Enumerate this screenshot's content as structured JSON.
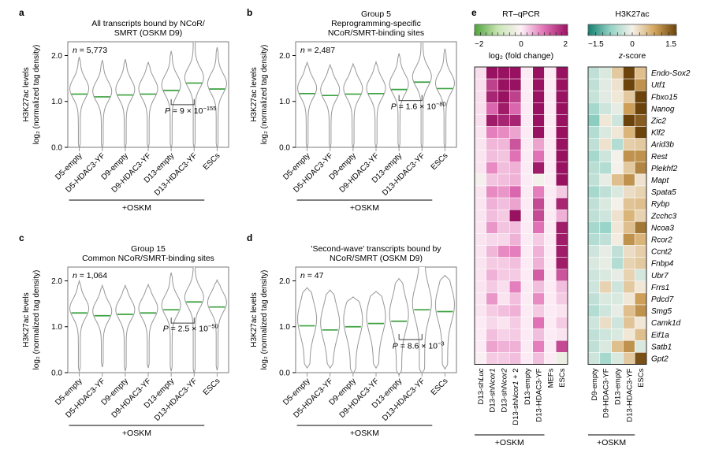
{
  "figure_title": "H3K27ac violin plots and RT-qPCR / H3K27ac heatmaps",
  "colors": {
    "background": "#ffffff",
    "violin_outline": "#979797",
    "median_green": "#3ba13f",
    "box_stroke": "#7a7a7a",
    "bracket": "#3f3f3f",
    "heatmap_border": "#2b2b2b"
  },
  "violin_common": {
    "ylabel_line1": "H3K27ac levels",
    "ylabel_line2": "log₂ (normalized tag density)",
    "yticks": [
      "0.0",
      "1.0",
      "2.0"
    ],
    "ytick_values": [
      0,
      1,
      2
    ],
    "ymax": 2.3,
    "categories": [
      "D5-empty",
      "D5-HDAC3-YF",
      "D9-empty",
      "D9-HDAC3-YF",
      "D13-empty",
      "D13-HDAC3-YF",
      "ESCs"
    ],
    "group_label": "+OSKM",
    "group_span": [
      0,
      5
    ]
  },
  "chart_data": [
    {
      "id": "a",
      "type": "violin",
      "panel_letter": "a",
      "title_lines": [
        "All transcripts bound by NCoR/",
        "SMRT (OSKM D9)"
      ],
      "n_parts": [
        {
          "t": "n",
          "i": true
        },
        {
          "t": " = 5,773"
        }
      ],
      "p_parts": [
        {
          "t": "P",
          "i": true
        },
        {
          "t": " = 9 × 10"
        },
        {
          "t": "−155",
          "sup": true
        }
      ],
      "medians": [
        1.16,
        1.1,
        1.14,
        1.16,
        1.24,
        1.4,
        1.27
      ],
      "tops": [
        1.97,
        1.9,
        1.92,
        1.86,
        2.1,
        2.45,
        2.18
      ],
      "bottoms": [
        -0.02,
        -0.02,
        -0.02,
        -0.02,
        -0.02,
        -0.02,
        -0.02
      ],
      "sigma": 0.3,
      "base": 0.1,
      "bulge_offset": 0.12,
      "bracket": {
        "violins": [
          4,
          5
        ],
        "y": 0.93,
        "text_y": 0.74
      }
    },
    {
      "id": "b",
      "type": "violin",
      "panel_letter": "b",
      "title_lines": [
        "Group 5",
        "Reprogramming-specific",
        "NCoR/SMRT-binding sites"
      ],
      "n_parts": [
        {
          "t": "n",
          "i": true
        },
        {
          "t": " = 2,487"
        }
      ],
      "p_parts": [
        {
          "t": "P",
          "i": true
        },
        {
          "t": " = 1.6 × 10"
        },
        {
          "t": "−80",
          "sup": true
        }
      ],
      "medians": [
        1.17,
        1.13,
        1.16,
        1.17,
        1.26,
        1.42,
        1.28
      ],
      "tops": [
        1.85,
        1.8,
        1.82,
        1.86,
        2.05,
        2.42,
        2.15
      ],
      "bottoms": [
        -0.02,
        -0.02,
        -0.02,
        -0.02,
        -0.02,
        -0.02,
        -0.02
      ],
      "sigma": 0.3,
      "base": 0.1,
      "bulge_offset": 0.12,
      "bracket": {
        "violins": [
          4,
          5
        ],
        "y": 1.02,
        "text_y": 0.83
      }
    },
    {
      "id": "c",
      "type": "violin",
      "panel_letter": "c",
      "title_lines": [
        "Group 15",
        "Common NCoR/SMRT-binding sites"
      ],
      "n_parts": [
        {
          "t": "n",
          "i": true
        },
        {
          "t": " = 1,064"
        }
      ],
      "p_parts": [
        {
          "t": "P",
          "i": true
        },
        {
          "t": " = 2.5 × 10"
        },
        {
          "t": "−50",
          "sup": true
        }
      ],
      "medians": [
        1.3,
        1.24,
        1.27,
        1.3,
        1.37,
        1.54,
        1.43
      ],
      "tops": [
        2.0,
        1.9,
        1.9,
        1.92,
        2.18,
        2.5,
        2.02
      ],
      "bottoms": [
        0.02,
        0.12,
        0.03,
        0.1,
        0.03,
        -0.02,
        0.05
      ],
      "sigma": 0.3,
      "base": 0.1,
      "bulge_offset": 0.1,
      "bracket": {
        "violins": [
          4,
          5
        ],
        "y": 1.08,
        "text_y": 0.9
      }
    },
    {
      "id": "d",
      "type": "violin",
      "panel_letter": "d",
      "title_lines": [
        "'Second-wave' transcripts bound by",
        "NCoR/SMRT (OSKM D9)"
      ],
      "n_parts": [
        {
          "t": "n",
          "i": true
        },
        {
          "t": " = 47"
        }
      ],
      "p_parts": [
        {
          "t": "P",
          "i": true
        },
        {
          "t": " = 8.6 × 10"
        },
        {
          "t": "−3",
          "sup": true
        }
      ],
      "medians": [
        1.02,
        0.93,
        1.0,
        1.07,
        1.12,
        1.37,
        1.33
      ],
      "tops": [
        1.85,
        1.8,
        1.65,
        1.77,
        2.05,
        2.5,
        2.12
      ],
      "bottoms": [
        0.1,
        0.1,
        -0.02,
        0.1,
        -0.05,
        -0.02,
        0.08
      ],
      "sigma": 0.5,
      "base": 0.28,
      "bulge_offset": 0.15,
      "bracket": {
        "violins": [
          4,
          5
        ],
        "y": 0.72,
        "text_y": 0.52
      }
    },
    {
      "id": "e_rtqpcr",
      "type": "heatmap",
      "panel_letter": "e",
      "legend": {
        "title": "RT–qPCR",
        "label_parts": [
          {
            "t": "log₂ (fold change)"
          }
        ],
        "ticks": [
          "−2",
          "0",
          "2"
        ],
        "tick_values": [
          -2,
          0,
          2
        ],
        "domain": [
          -2,
          2
        ],
        "minor_tick_step": 0.25,
        "color_stops": [
          [
            -2,
            "#4fa33b"
          ],
          [
            -1,
            "#c9e6b4"
          ],
          [
            0,
            "#fdf1f7"
          ],
          [
            1,
            "#e171b5"
          ],
          [
            2,
            "#991261"
          ]
        ]
      },
      "columns": [
        {
          "parts": [
            {
              "t": "D13-sh"
            },
            {
              "t": "Luc",
              "i": true
            }
          ]
        },
        {
          "parts": [
            {
              "t": "D13-sh"
            },
            {
              "t": "Ncor1",
              "i": true
            }
          ]
        },
        {
          "parts": [
            {
              "t": "D13-sh"
            },
            {
              "t": "Ncor2",
              "i": true
            }
          ]
        },
        {
          "parts": [
            {
              "t": "D13-sh"
            },
            {
              "t": "Ncor1",
              "i": true
            },
            {
              "t": " + 2"
            }
          ]
        },
        {
          "parts": [
            {
              "t": "D13-empty"
            }
          ]
        },
        {
          "parts": [
            {
              "t": "D13-HDAC3-YF"
            }
          ]
        },
        {
          "parts": [
            {
              "t": "MEFs"
            }
          ]
        },
        {
          "parts": [
            {
              "t": "ESCs"
            }
          ]
        }
      ],
      "group_label": "+OSKM",
      "group_span": [
        0,
        5
      ],
      "rows": [
        "Endo-Sox2",
        "Utf1",
        "Fbxo15",
        "Nanog",
        "Zic2",
        "Klf2",
        "Arid3b",
        "Rest",
        "Plekhf2",
        "Mapt",
        "Spata5",
        "Rybp",
        "Zcchc3",
        "Ncoa3",
        "Rcor2",
        "Ccnt2",
        "Fnbp4",
        "Ubr7",
        "Frrs1",
        "Pdcd7",
        "Smg5",
        "Camk1d",
        "Eif1a",
        "Satb1",
        "Gpt2"
      ],
      "show_row_labels": false,
      "values": [
        [
          0.15,
          2.0,
          2.0,
          2.0,
          0.05,
          2.0,
          0.05,
          2.0
        ],
        [
          0.15,
          1.5,
          2.0,
          2.0,
          0.05,
          2.0,
          0.05,
          2.0
        ],
        [
          0.15,
          1.8,
          2.0,
          1.5,
          0.05,
          2.0,
          0.05,
          2.0
        ],
        [
          0.15,
          1.1,
          1.9,
          1.1,
          0.05,
          2.0,
          0.05,
          2.0
        ],
        [
          0.15,
          1.9,
          1.8,
          1.8,
          0.05,
          2.0,
          0.05,
          2.0
        ],
        [
          0.1,
          0.9,
          0.8,
          0.6,
          0.05,
          2.0,
          0.05,
          2.0
        ],
        [
          0.1,
          0.45,
          0.45,
          1.3,
          0.05,
          0.6,
          0.05,
          2.0
        ],
        [
          0.1,
          0.4,
          0.35,
          1.0,
          0.05,
          1.0,
          0.05,
          2.0
        ],
        [
          0.1,
          0.8,
          0.4,
          0.5,
          0.05,
          1.9,
          0.05,
          2.0
        ],
        [
          -0.15,
          0.35,
          0.4,
          0.5,
          0.05,
          -0.2,
          0.05,
          2.0
        ],
        [
          0.1,
          0.8,
          0.7,
          1.1,
          0.05,
          0.9,
          0.05,
          0.3
        ],
        [
          0.1,
          0.5,
          0.4,
          0.6,
          0.05,
          1.4,
          0.05,
          1.8
        ],
        [
          0.1,
          0.4,
          0.3,
          2.0,
          0.05,
          1.4,
          0.05,
          0.5
        ],
        [
          0.1,
          0.7,
          0.35,
          0.4,
          0.05,
          1.0,
          0.05,
          1.9
        ],
        [
          0.1,
          0.2,
          0.2,
          0.5,
          0.05,
          0.3,
          0.05,
          1.9
        ],
        [
          0.1,
          0.45,
          0.8,
          0.9,
          0.05,
          0.5,
          0.05,
          1.9
        ],
        [
          0.1,
          0.3,
          0.3,
          0.4,
          0.05,
          0.5,
          0.05,
          1.9
        ],
        [
          0.1,
          0.5,
          0.3,
          0.3,
          0.05,
          1.2,
          0.05,
          1.3
        ],
        [
          0.1,
          0.3,
          0.15,
          0.9,
          0.05,
          0.4,
          0.05,
          0.4
        ],
        [
          0.1,
          0.7,
          0.1,
          0.4,
          0.05,
          0.8,
          0.05,
          0.3
        ],
        [
          0.1,
          0.3,
          0.4,
          0.5,
          0.05,
          0.3,
          0.05,
          0.1
        ],
        [
          0.05,
          0.2,
          0.1,
          0.3,
          0.05,
          1.0,
          0.05,
          0.3
        ],
        [
          0.05,
          0.4,
          0.25,
          0.3,
          0.05,
          0.4,
          0.05,
          0.1
        ],
        [
          0.05,
          0.6,
          0.5,
          0.5,
          0.05,
          0.9,
          0.05,
          1.4
        ],
        [
          -0.05,
          0.3,
          0.3,
          0.4,
          0.05,
          0.4,
          0.05,
          -0.3
        ]
      ]
    },
    {
      "id": "e_h3k27ac",
      "type": "heatmap",
      "panel_letter": "",
      "legend": {
        "title": "H3K27ac",
        "label_parts": [
          {
            "t": "z",
            "i": true
          },
          {
            "t": "-score"
          }
        ],
        "ticks": [
          "−1.5",
          "0",
          "1.5"
        ],
        "tick_values": [
          -1.5,
          0,
          1.5
        ],
        "domain": [
          -1.5,
          1.5
        ],
        "minor_tick_step": 0.25,
        "color_stops": [
          [
            -1.5,
            "#15806e"
          ],
          [
            -0.75,
            "#93d2c6"
          ],
          [
            0,
            "#f4f1ea"
          ],
          [
            0.75,
            "#d4a65e"
          ],
          [
            1.5,
            "#6b430b"
          ]
        ]
      },
      "columns": [
        {
          "parts": [
            {
              "t": "D9-empty"
            }
          ]
        },
        {
          "parts": [
            {
              "t": "D9-HDAC3-YF"
            }
          ]
        },
        {
          "parts": [
            {
              "t": "D13-empty"
            }
          ]
        },
        {
          "parts": [
            {
              "t": "D13-HDAC3-YF"
            }
          ]
        },
        {
          "parts": [
            {
              "t": "ESCs"
            }
          ]
        }
      ],
      "group_label": "+OSKM",
      "group_span": [
        0,
        3
      ],
      "rows": [
        "Endo-Sox2",
        "Utf1",
        "Fbxo15",
        "Nanog",
        "Zic2",
        "Klf2",
        "Arid3b",
        "Rest",
        "Plekhf2",
        "Mapt",
        "Spata5",
        "Rybp",
        "Zcchc3",
        "Ncoa3",
        "Rcor2",
        "Ccnt2",
        "Fnbp4",
        "Ubr7",
        "Frrs1",
        "Pdcd7",
        "Smg5",
        "Camk1d",
        "Eif1a",
        "Satb1",
        "Gpt2"
      ],
      "show_row_labels": true,
      "values": [
        [
          -0.4,
          -0.2,
          0.4,
          1.5,
          0.5
        ],
        [
          -0.4,
          -0.15,
          0.15,
          1.5,
          0.9
        ],
        [
          -0.35,
          -0.15,
          0.1,
          0.4,
          1.5
        ],
        [
          -0.6,
          -0.3,
          -0.1,
          0.8,
          1.5
        ],
        [
          -0.8,
          0.1,
          -0.3,
          1.5,
          1.3
        ],
        [
          -0.5,
          -0.2,
          0.1,
          0.6,
          1.5
        ],
        [
          -0.4,
          0.15,
          -0.5,
          0.35,
          0.4
        ],
        [
          -0.6,
          -0.3,
          0.0,
          0.9,
          0.9
        ],
        [
          -0.45,
          -0.5,
          0.0,
          0.4,
          1.0
        ],
        [
          -0.4,
          -0.1,
          0.5,
          0.9,
          0.15
        ],
        [
          -0.6,
          -0.4,
          -0.2,
          0.2,
          0.3
        ],
        [
          -0.4,
          -0.2,
          0.0,
          0.45,
          0.5
        ],
        [
          -0.4,
          -0.3,
          0.15,
          0.6,
          0.3
        ],
        [
          -0.6,
          -0.7,
          0.1,
          0.5,
          1.1
        ],
        [
          -0.5,
          -0.4,
          0.05,
          0.9,
          0.6
        ],
        [
          -0.3,
          -0.1,
          -0.4,
          0.2,
          0.35
        ],
        [
          -0.2,
          -0.1,
          -0.5,
          0.3,
          0.4
        ],
        [
          -0.3,
          -0.2,
          -0.1,
          0.3,
          -0.25
        ],
        [
          -0.3,
          0.3,
          -0.3,
          0.4,
          0.1
        ],
        [
          -0.4,
          -0.2,
          -0.2,
          0.1,
          0.8
        ],
        [
          -0.5,
          -0.3,
          -0.1,
          0.5,
          0.9
        ],
        [
          -0.3,
          0.2,
          -0.3,
          0.45,
          0.1
        ],
        [
          -0.4,
          -0.3,
          -0.2,
          0.1,
          0.5
        ],
        [
          -0.4,
          -0.2,
          0.5,
          0.9,
          -0.2
        ],
        [
          -0.3,
          -0.6,
          -0.2,
          0.4,
          1.4
        ]
      ]
    }
  ]
}
